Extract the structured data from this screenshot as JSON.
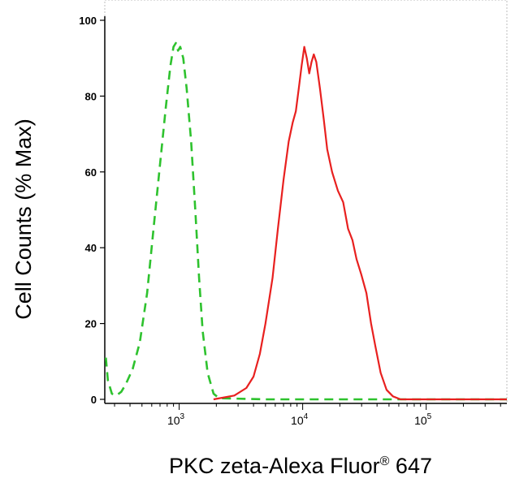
{
  "chart_data": {
    "type": "line",
    "xlabel_main": "PKC zeta-Alexa Fluor",
    "xlabel_sup": "®",
    "xlabel_tail": " 647",
    "ylabel": "Cell Counts (% Max)",
    "x_scale": "log",
    "xlim": [
      250,
      450000
    ],
    "ylim": [
      0,
      100
    ],
    "x_ticks": [
      {
        "value": 1000,
        "base": "10",
        "exp": "3"
      },
      {
        "value": 10000,
        "base": "10",
        "exp": "4"
      },
      {
        "value": 100000,
        "base": "10",
        "exp": "5"
      }
    ],
    "y_ticks": [
      {
        "value": 0,
        "label": "0"
      },
      {
        "value": 20,
        "label": "20"
      },
      {
        "value": 40,
        "label": "40"
      },
      {
        "value": 60,
        "label": "60"
      },
      {
        "value": 80,
        "label": "80"
      },
      {
        "value": 100,
        "label": "100"
      }
    ],
    "series": [
      {
        "color": "#2ec22e",
        "style": "dashed",
        "points": [
          [
            255,
            11
          ],
          [
            265,
            5
          ],
          [
            285,
            1.5
          ],
          [
            310,
            1
          ],
          [
            340,
            2
          ],
          [
            370,
            4
          ],
          [
            420,
            8
          ],
          [
            480,
            15
          ],
          [
            550,
            28
          ],
          [
            620,
            45
          ],
          [
            700,
            62
          ],
          [
            780,
            77
          ],
          [
            850,
            88
          ],
          [
            900,
            93
          ],
          [
            940,
            94
          ],
          [
            980,
            92
          ],
          [
            1020,
            93
          ],
          [
            1080,
            90
          ],
          [
            1150,
            82
          ],
          [
            1250,
            68
          ],
          [
            1350,
            50
          ],
          [
            1450,
            32
          ],
          [
            1550,
            18
          ],
          [
            1700,
            7
          ],
          [
            1900,
            1.5
          ],
          [
            2100,
            0.3
          ],
          [
            5000,
            0
          ],
          [
            20000,
            0
          ],
          [
            60000,
            0
          ],
          [
            200000,
            0
          ],
          [
            450000,
            0
          ]
        ]
      },
      {
        "color": "#e8201f",
        "style": "solid",
        "points": [
          [
            1900,
            0
          ],
          [
            2800,
            1
          ],
          [
            3500,
            3
          ],
          [
            4000,
            6
          ],
          [
            4500,
            12
          ],
          [
            5000,
            20
          ],
          [
            5700,
            32
          ],
          [
            6300,
            45
          ],
          [
            7000,
            58
          ],
          [
            7700,
            68
          ],
          [
            8300,
            73
          ],
          [
            8800,
            76
          ],
          [
            9300,
            82
          ],
          [
            9800,
            88
          ],
          [
            10300,
            93
          ],
          [
            10800,
            90
          ],
          [
            11300,
            86
          ],
          [
            11800,
            89
          ],
          [
            12300,
            91
          ],
          [
            12900,
            89
          ],
          [
            13800,
            82
          ],
          [
            14800,
            74
          ],
          [
            15800,
            66
          ],
          [
            17300,
            60
          ],
          [
            19300,
            55
          ],
          [
            21300,
            52
          ],
          [
            23300,
            45
          ],
          [
            25300,
            42
          ],
          [
            27300,
            37
          ],
          [
            29800,
            33
          ],
          [
            32800,
            28
          ],
          [
            35800,
            20
          ],
          [
            38800,
            14
          ],
          [
            42800,
            7
          ],
          [
            47800,
            2.5
          ],
          [
            53800,
            0.8
          ],
          [
            62000,
            0
          ],
          [
            100000,
            0
          ],
          [
            450000,
            0
          ]
        ]
      }
    ]
  }
}
